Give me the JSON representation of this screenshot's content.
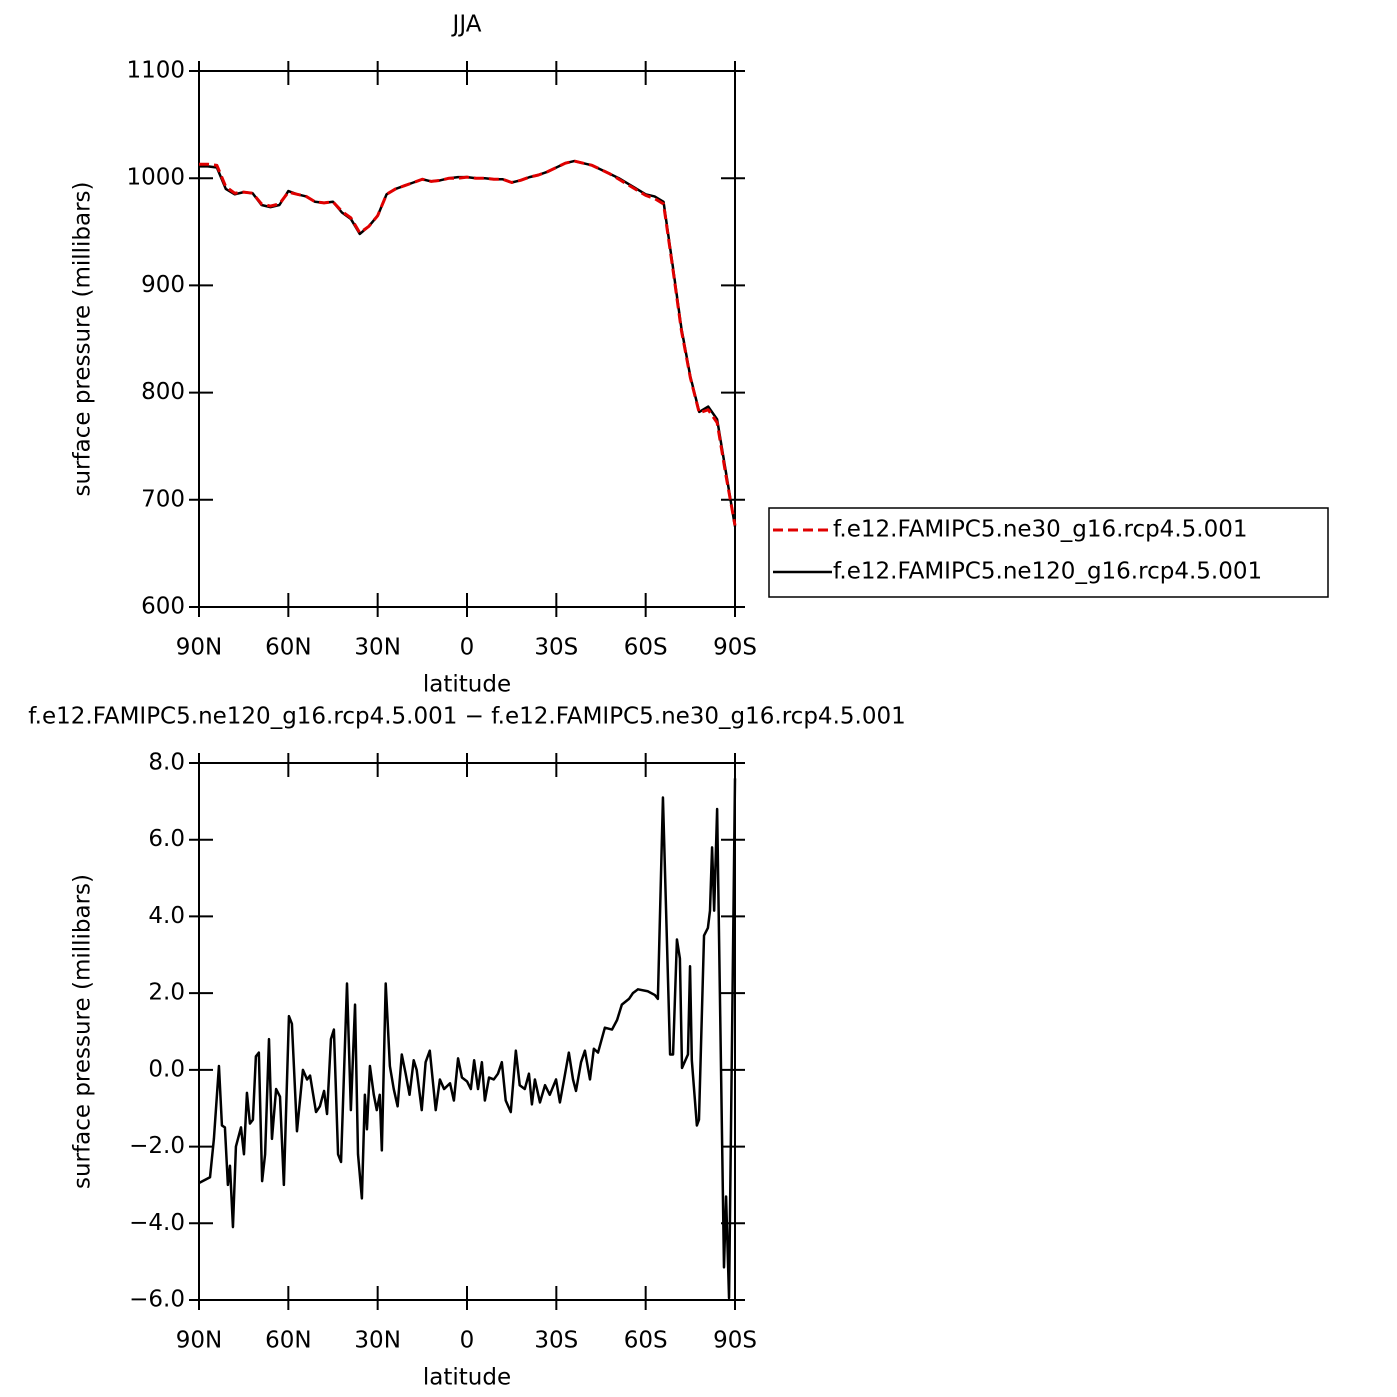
{
  "chart_data": [
    {
      "type": "line",
      "title": "JJA",
      "xlabel": "latitude",
      "ylabel": "surface pressure (millibars)",
      "xlim": [
        90,
        -90
      ],
      "ylim": [
        600,
        1100
      ],
      "xticks": [
        {
          "value": 90,
          "label": "90N"
        },
        {
          "value": 60,
          "label": "60N"
        },
        {
          "value": 30,
          "label": "30N"
        },
        0,
        {
          "value": -30,
          "label": "30S"
        },
        {
          "value": -60,
          "label": "60S"
        },
        {
          "value": -90,
          "label": "90S"
        }
      ],
      "yticks": [
        600,
        700,
        800,
        900,
        1000,
        1100
      ],
      "legend": "right",
      "x": [
        90,
        87,
        84,
        81,
        78,
        75,
        72,
        69,
        66,
        63,
        60,
        57,
        54,
        51,
        48,
        45,
        42,
        39,
        36,
        33,
        30,
        27,
        24,
        21,
        18,
        15,
        12,
        9,
        6,
        3,
        0,
        -3,
        -6,
        -9,
        -12,
        -15,
        -18,
        -21,
        -24,
        -27,
        -30,
        -33,
        -36,
        -39,
        -42,
        -45,
        -48,
        -51,
        -54,
        -57,
        -60,
        -63,
        -66,
        -69,
        -72,
        -75,
        -78,
        -81,
        -84,
        -87,
        -90
      ],
      "series": [
        {
          "name": "f.e12.FAMIPC5.ne30_g16.rcp4.5.001",
          "color": "#e00000",
          "dash": true,
          "values": [
            1013,
            1013,
            1012,
            992,
            986,
            987,
            986,
            976,
            974,
            976,
            987,
            985,
            983,
            978,
            977,
            978,
            969,
            963,
            949,
            955,
            965,
            985,
            990,
            993,
            996,
            999,
            997,
            998,
            1000,
            1000,
            1001,
            1000,
            1000,
            999,
            999,
            996,
            998,
            1001,
            1003,
            1006,
            1010,
            1014,
            1016,
            1014,
            1012,
            1008,
            1004,
            999,
            994,
            989,
            984,
            981,
            976,
            918,
            858,
            814,
            781,
            784,
            772,
            722,
            676
          ]
        },
        {
          "name": "f.e12.FAMIPC5.ne120_g16.rcp4.5.001",
          "color": "#000000",
          "dash": false,
          "values": [
            1011,
            1011,
            1010,
            990,
            985,
            987,
            986,
            975,
            973,
            975,
            988,
            985,
            983,
            978,
            977,
            978,
            968,
            962,
            948,
            955,
            965,
            985,
            990,
            993,
            996,
            999,
            997,
            998,
            1000,
            1001,
            1001,
            1000,
            1000,
            999,
            999,
            996,
            998,
            1001,
            1003,
            1006,
            1010,
            1014,
            1016,
            1014,
            1012,
            1008,
            1004,
            1000,
            995,
            990,
            985,
            983,
            978,
            920,
            860,
            815,
            782,
            787,
            775,
            725,
            675
          ]
        }
      ]
    },
    {
      "type": "line",
      "title": "f.e12.FAMIPC5.ne120_g16.rcp4.5.001 − f.e12.FAMIPC5.ne30_g16.rcp4.5.001",
      "xlabel": "latitude",
      "ylabel": "surface pressure (millibars)",
      "xlim": [
        90,
        -90
      ],
      "ylim": [
        -6,
        8
      ],
      "xticks": [
        {
          "value": 90,
          "label": "90N"
        },
        {
          "value": 60,
          "label": "60N"
        },
        {
          "value": 30,
          "label": "30N"
        },
        0,
        {
          "value": -30,
          "label": "30S"
        },
        {
          "value": -60,
          "label": "60S"
        },
        {
          "value": -90,
          "label": "90S"
        }
      ],
      "yticks": [
        {
          "value": -6,
          "label": "−6.0"
        },
        {
          "value": -4,
          "label": "−4.0"
        },
        {
          "value": -2,
          "label": "−2.0"
        },
        {
          "value": 0,
          "label": "0.0"
        },
        {
          "value": 2,
          "label": "2.0"
        },
        {
          "value": 4,
          "label": "4.0"
        },
        {
          "value": 6,
          "label": "6.0"
        },
        {
          "value": 8,
          "label": "8.0"
        }
      ],
      "x": [
        90,
        86.3,
        85,
        83.3,
        82.3,
        81.3,
        80.3,
        79.6,
        78.6,
        77.6,
        75.9,
        74.9,
        73.9,
        72.9,
        71.9,
        70.9,
        69.9,
        68.8,
        67.8,
        66.5,
        65.5,
        64.1,
        62.8,
        61.5,
        59.8,
        58.8,
        57.1,
        55.1,
        53.7,
        52.7,
        50.7,
        49.4,
        48,
        47,
        45.7,
        44.7,
        43.3,
        42.3,
        40.3,
        39,
        37.6,
        36.6,
        35.3,
        34.3,
        33.6,
        32.6,
        31.3,
        30.3,
        29.3,
        28.6,
        27.3,
        25.9,
        24.6,
        23.3,
        21.9,
        20.6,
        19.3,
        17.9,
        16.9,
        15.2,
        13.9,
        12.5,
        10.5,
        9.1,
        7.7,
        5.7,
        4.4,
        3,
        1.7,
        0,
        -1.3,
        -2.4,
        -3.7,
        -5,
        -6,
        -7.4,
        -9,
        -10.4,
        -11.7,
        -13,
        -14.7,
        -16.4,
        -17.7,
        -19.4,
        -20.8,
        -21.8,
        -22.8,
        -24.5,
        -26.2,
        -27.8,
        -29.9,
        -31.2,
        -32.6,
        -34.2,
        -35.6,
        -36.6,
        -38.3,
        -39.6,
        -41.3,
        -42.6,
        -44,
        -46.3,
        -48.7,
        -50.4,
        -52,
        -54.4,
        -55.7,
        -57.4,
        -60.7,
        -63.1,
        -64.1,
        -65.8,
        -68.2,
        -69.2,
        -70.5,
        -71.5,
        -72.2,
        -74.2,
        -74.9,
        -75.5,
        -77.2,
        -77.9,
        -79.6,
        -80.9,
        -81.6,
        -82.3,
        -83,
        -84,
        -86.3,
        -87,
        -88,
        -90
      ],
      "series": [
        {
          "color": "#000000",
          "dash": false,
          "values": [
            -2.95,
            -2.8,
            -1.8,
            0.1,
            -1.45,
            -1.5,
            -3.0,
            -2.5,
            -4.1,
            -2.0,
            -1.5,
            -2.2,
            -0.6,
            -1.4,
            -1.3,
            0.35,
            0.45,
            -2.9,
            -2.2,
            0.8,
            -1.8,
            -0.5,
            -0.7,
            -3.0,
            1.4,
            1.2,
            -1.6,
            0.0,
            -0.25,
            -0.15,
            -1.1,
            -0.95,
            -0.55,
            -1.15,
            0.8,
            1.05,
            -2.2,
            -2.4,
            2.25,
            -1.05,
            1.7,
            -2.2,
            -3.35,
            -0.65,
            -1.55,
            0.1,
            -0.65,
            -1.05,
            -0.65,
            -2.1,
            2.25,
            0.1,
            -0.5,
            -0.95,
            0.4,
            -0.1,
            -0.65,
            0.25,
            0.0,
            -1.05,
            0.2,
            0.5,
            -1.05,
            -0.25,
            -0.5,
            -0.35,
            -0.8,
            0.3,
            -0.2,
            -0.3,
            -0.5,
            0.25,
            -0.5,
            0.2,
            -0.8,
            -0.2,
            -0.25,
            -0.1,
            0.2,
            -0.8,
            -1.1,
            0.5,
            -0.4,
            -0.5,
            -0.1,
            -0.9,
            -0.25,
            -0.85,
            -0.4,
            -0.65,
            -0.25,
            -0.85,
            -0.25,
            0.45,
            -0.25,
            -0.55,
            0.2,
            0.5,
            -0.25,
            0.55,
            0.45,
            1.1,
            1.05,
            1.3,
            1.7,
            1.85,
            2.0,
            2.1,
            2.05,
            1.95,
            1.85,
            7.1,
            0.4,
            0.4,
            3.4,
            2.9,
            0.05,
            0.4,
            2.7,
            0.25,
            -1.45,
            -1.3,
            3.5,
            3.7,
            4.15,
            5.8,
            4.15,
            6.8,
            -5.15,
            -3.3,
            -5.95,
            7.6
          ]
        }
      ]
    }
  ]
}
